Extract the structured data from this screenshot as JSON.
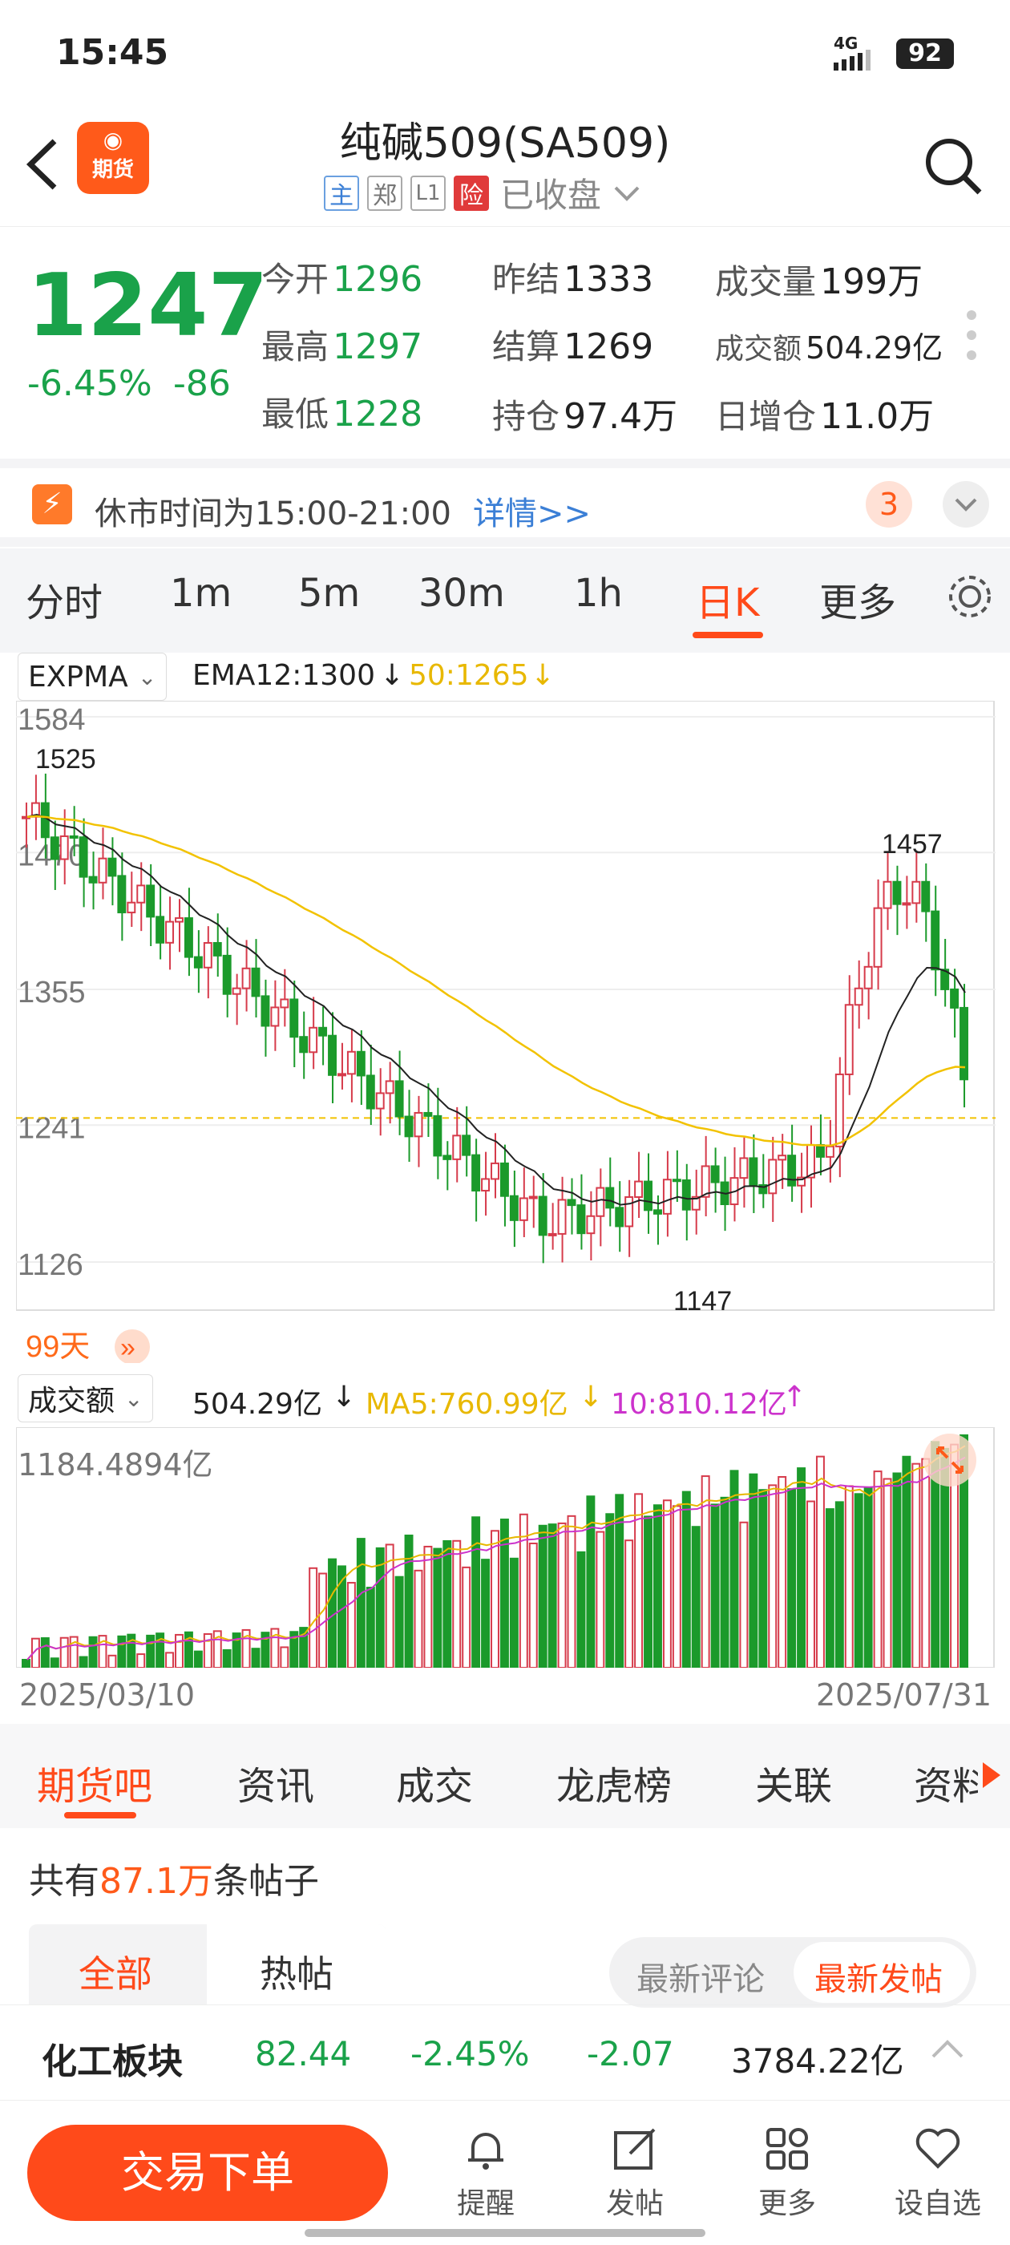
{
  "status": {
    "time": "15:45",
    "network": "4G",
    "battery": "92"
  },
  "header": {
    "title": "纯碱509(SA509)",
    "app_badge": "期货",
    "tags": [
      "主",
      "郑",
      "L1",
      "险"
    ],
    "state": "已收盘"
  },
  "quote": {
    "price": "1247",
    "change_pct": "-6.45%",
    "change": "-86",
    "fields": [
      {
        "label": "今开",
        "value": "1296"
      },
      {
        "label": "最高",
        "value": "1297"
      },
      {
        "label": "最低",
        "value": "1228"
      },
      {
        "label": "昨结",
        "value": "1333"
      },
      {
        "label": "结算",
        "value": "1269"
      },
      {
        "label": "持仓",
        "value": "97.4万"
      },
      {
        "label": "成交量",
        "value": "199万"
      },
      {
        "label": "成交额",
        "value": "504.29亿"
      },
      {
        "label": "日增仓",
        "value": "11.0万"
      }
    ]
  },
  "notice": {
    "text": "休市时间为15:00-21:00",
    "link": "详情>>",
    "count": "3"
  },
  "period_tabs": [
    "分时",
    "1m",
    "5m",
    "30m",
    "1h",
    "日K",
    "更多"
  ],
  "active_period": "日K",
  "indicator": {
    "name": "EXPMA",
    "ema12": "EMA12:1300",
    "ema50": "50:1265"
  },
  "chart_data": {
    "type": "candlestick",
    "y_ticks": [
      "1584",
      "1470",
      "1355",
      "1241",
      "1126"
    ],
    "ylim": [
      1126,
      1584
    ],
    "annotations": {
      "high": "1525",
      "peak": "1457",
      "low": "1147"
    },
    "range_label": "99天",
    "current_line": 1247,
    "colors": {
      "up": "#d63b4b",
      "down": "#1b9a2b",
      "ema12": "#222222",
      "ema50": "#f2c200"
    }
  },
  "volume": {
    "label": "成交额",
    "value": "504.29亿",
    "ma5": "MA5:760.99亿",
    "ma10": "10:810.12亿",
    "max_label": "1184.4894亿",
    "start_date": "2025/03/10",
    "end_date": "2025/07/31"
  },
  "bottom_tabs": [
    "期货吧",
    "资讯",
    "成交",
    "龙虎榜",
    "关联",
    "资料"
  ],
  "posts": {
    "prefix": "共有",
    "count": "87.1万",
    "suffix": "条帖子",
    "filters": [
      "全部",
      "热帖"
    ],
    "sorts": [
      "最新评论",
      "最新发帖"
    ]
  },
  "sector": {
    "name": "化工板块",
    "price": "82.44",
    "pct": "-2.45%",
    "chg": "-2.07",
    "amount": "3784.22亿"
  },
  "nav": {
    "trade": "交易下单",
    "items": [
      "提醒",
      "发帖",
      "更多",
      "设自选"
    ]
  }
}
